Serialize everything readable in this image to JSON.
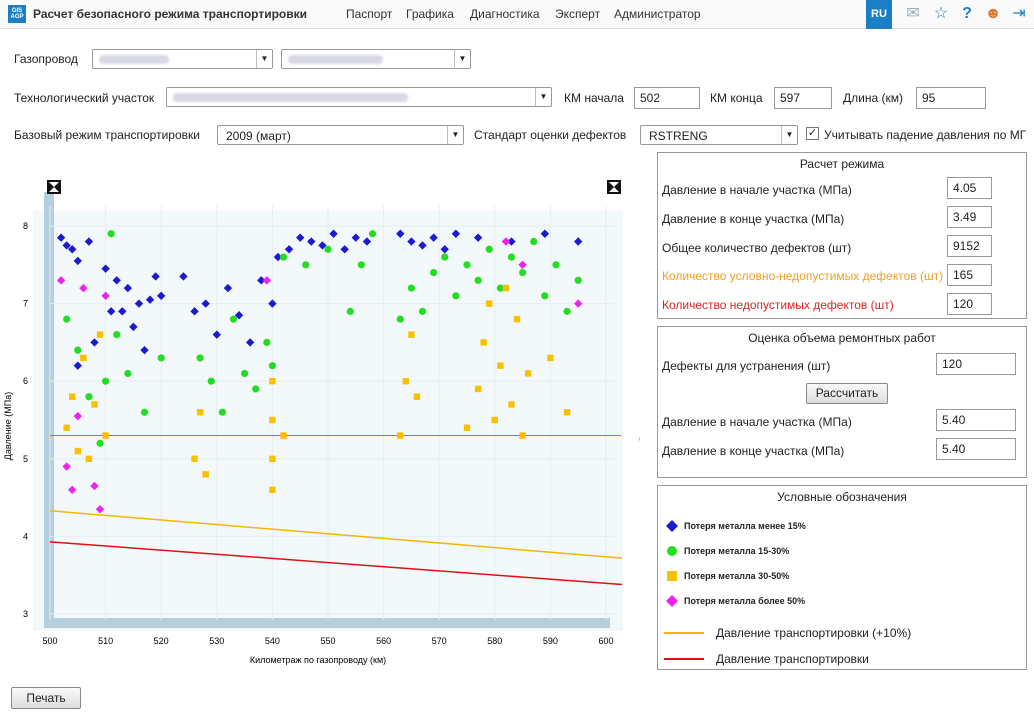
{
  "header": {
    "logo_text": "GIS AGP",
    "title": "Расчет безопасного режима транспортировки",
    "nav": [
      "Паспорт",
      "Графика",
      "Диагностика",
      "Эксперт",
      "Администратор"
    ],
    "lang": "RU",
    "icons": [
      "mail-icon",
      "star-icon",
      "help-icon",
      "user-icon",
      "logout-icon"
    ]
  },
  "form": {
    "pipeline_label": "Газопровод",
    "section_label": "Технологический участок",
    "km_start_label": "КМ начала",
    "km_start_value": "502",
    "km_end_label": "КМ конца",
    "km_end_value": "597",
    "length_label": "Длина (км)",
    "length_value": "95",
    "base_mode_label": "Базовый режим транспортировки",
    "base_mode_value": "2009 (март)",
    "standard_label": "Стандарт оценки дефектов",
    "standard_value": "RSTRENG",
    "pressure_drop_label": "Учитывать падение давления по МГ",
    "pressure_drop_checked": true
  },
  "mode_calc": {
    "title": "Расчет режима",
    "rows": [
      {
        "label": "Давление в начале участка (МПа)",
        "value": "4.05",
        "color": "#222222"
      },
      {
        "label": "Давление в конце участка (МПа)",
        "value": "3.49",
        "color": "#222222"
      },
      {
        "label": "Общее количество дефектов (шт)",
        "value": "9152",
        "color": "#222222"
      },
      {
        "label": "Количество условно-недопустимых дефектов (шт)",
        "value": "165",
        "color": "#f0a020"
      },
      {
        "label": "Количество недопустимых дефектов (шт)",
        "value": "120",
        "color": "#dd2222"
      }
    ]
  },
  "repair": {
    "title": "Оценка объема ремонтных работ",
    "defects_label": "Дефекты для устранения (шт)",
    "defects_value": "120",
    "calc_button": "Рассчитать",
    "p_start_label": "Давление в начале участка (МПа)",
    "p_start_value": "5.40",
    "p_end_label": "Давление в конце участка (МПа)",
    "p_end_value": "5.40"
  },
  "legend": {
    "title": "Условные обозначения",
    "items": [
      {
        "label": "Потеря металла менее 15%",
        "color": "#1a1ad0",
        "shape": "diamond"
      },
      {
        "label": "Потеря металла 15-30%",
        "color": "#22dd22",
        "shape": "circle"
      },
      {
        "label": "Потеря металла 30-50%",
        "color": "#f8c000",
        "shape": "square"
      },
      {
        "label": "Потеря металла более 50%",
        "color": "#ee22ee",
        "shape": "diamond"
      }
    ],
    "lines": [
      {
        "label": "Давление транспортировки (+10%)",
        "color": "#f8b400"
      },
      {
        "label": "Давление транспортировки",
        "color": "#dd1111"
      }
    ]
  },
  "print_button": "Печать",
  "chart_data": {
    "type": "scatter",
    "xlabel": "Километраж по газопроводу (км)",
    "ylabel": "Давление (МПа)",
    "xlim": [
      500,
      600
    ],
    "ylim": [
      3,
      8
    ],
    "xticks": [
      "500",
      "510",
      "520",
      "530",
      "540",
      "550",
      "560",
      "570",
      "580",
      "590",
      "600"
    ],
    "yticks": [
      "3",
      "4",
      "5",
      "6",
      "7",
      "8"
    ],
    "hline": {
      "y": 5.3,
      "color": "#2aa0d0"
    },
    "lines": [
      {
        "name": "Давление транспортировки (+10%)",
        "color": "#f8b400",
        "x": [
          500,
          600
        ],
        "y": [
          4.33,
          3.72
        ]
      },
      {
        "name": "Давление транспортировки",
        "color": "#dd1111",
        "x": [
          500,
          600
        ],
        "y": [
          3.93,
          3.38
        ]
      }
    ],
    "clusters": [
      {
        "series": "blue",
        "x": [
          502,
          503,
          504,
          505,
          507,
          510,
          512,
          514,
          518
        ],
        "y": [
          7.85,
          7.75,
          7.7,
          7.55,
          7.8,
          7.45,
          7.3,
          7.2,
          7.05
        ]
      },
      {
        "series": "blue",
        "x": [
          505,
          508,
          511,
          513,
          515,
          516,
          517,
          519,
          520
        ],
        "y": [
          6.2,
          6.5,
          6.9,
          6.9,
          6.7,
          7.0,
          6.4,
          7.35,
          7.1
        ]
      },
      {
        "series": "blue",
        "x": [
          524,
          526,
          528,
          530,
          532,
          534,
          536,
          538,
          540
        ],
        "y": [
          7.35,
          6.9,
          7.0,
          6.6,
          7.2,
          6.85,
          6.5,
          7.3,
          7.0
        ]
      },
      {
        "series": "blue",
        "x": [
          541,
          543,
          545,
          547,
          549,
          551,
          553,
          555,
          557
        ],
        "y": [
          7.6,
          7.7,
          7.85,
          7.8,
          7.75,
          7.9,
          7.7,
          7.85,
          7.8
        ]
      },
      {
        "series": "blue",
        "x": [
          563,
          565,
          567,
          569,
          571,
          573,
          577,
          583,
          589,
          595
        ],
        "y": [
          7.9,
          7.8,
          7.75,
          7.85,
          7.7,
          7.9,
          7.85,
          7.8,
          7.9,
          7.8
        ]
      },
      {
        "series": "green",
        "x": [
          503,
          505,
          507,
          509,
          510,
          511,
          512,
          514,
          517,
          520
        ],
        "y": [
          6.8,
          6.4,
          5.8,
          5.2,
          6.0,
          7.9,
          6.6,
          6.1,
          5.6,
          6.3
        ]
      },
      {
        "series": "green",
        "x": [
          527,
          529,
          531,
          533,
          535,
          537,
          539,
          540
        ],
        "y": [
          6.3,
          6.0,
          5.6,
          6.8,
          6.1,
          5.9,
          6.5,
          6.2
        ]
      },
      {
        "series": "green",
        "x": [
          542,
          546,
          550,
          554,
          556,
          558
        ],
        "y": [
          7.6,
          7.5,
          7.7,
          6.9,
          7.5,
          7.9
        ]
      },
      {
        "series": "green",
        "x": [
          563,
          565,
          567,
          569,
          571,
          573,
          575,
          577,
          579,
          581,
          583,
          585,
          587,
          589,
          591,
          593,
          595
        ],
        "y": [
          6.8,
          7.2,
          6.9,
          7.4,
          7.6,
          7.1,
          7.5,
          7.3,
          7.7,
          7.2,
          7.6,
          7.4,
          7.8,
          7.1,
          7.5,
          6.9,
          7.3
        ]
      },
      {
        "series": "yellow",
        "x": [
          503,
          504,
          505,
          506,
          507,
          508,
          509,
          510
        ],
        "y": [
          5.4,
          5.8,
          5.1,
          6.3,
          5.0,
          5.7,
          6.6,
          5.3
        ]
      },
      {
        "series": "yellow",
        "x": [
          526,
          527,
          528,
          540,
          540,
          540,
          540,
          542
        ],
        "y": [
          5.0,
          5.6,
          4.8,
          6.0,
          5.5,
          5.0,
          4.6,
          5.3
        ]
      },
      {
        "series": "yellow",
        "x": [
          563,
          564,
          565,
          566,
          575,
          577,
          578,
          579,
          580,
          581,
          582,
          583,
          584,
          585,
          586,
          590,
          593
        ],
        "y": [
          5.3,
          6.0,
          6.6,
          5.8,
          5.4,
          5.9,
          6.5,
          7.0,
          5.5,
          6.2,
          7.2,
          5.7,
          6.8,
          5.3,
          6.1,
          6.3,
          5.6
        ]
      },
      {
        "series": "magenta",
        "x": [
          502,
          503,
          504,
          505,
          506,
          508,
          509,
          510
        ],
        "y": [
          7.3,
          4.9,
          4.6,
          5.55,
          7.2,
          4.65,
          4.35,
          7.1
        ]
      },
      {
        "series": "magenta",
        "x": [
          539,
          582,
          585,
          595
        ],
        "y": [
          7.3,
          7.8,
          7.5,
          7.0
        ]
      }
    ]
  }
}
